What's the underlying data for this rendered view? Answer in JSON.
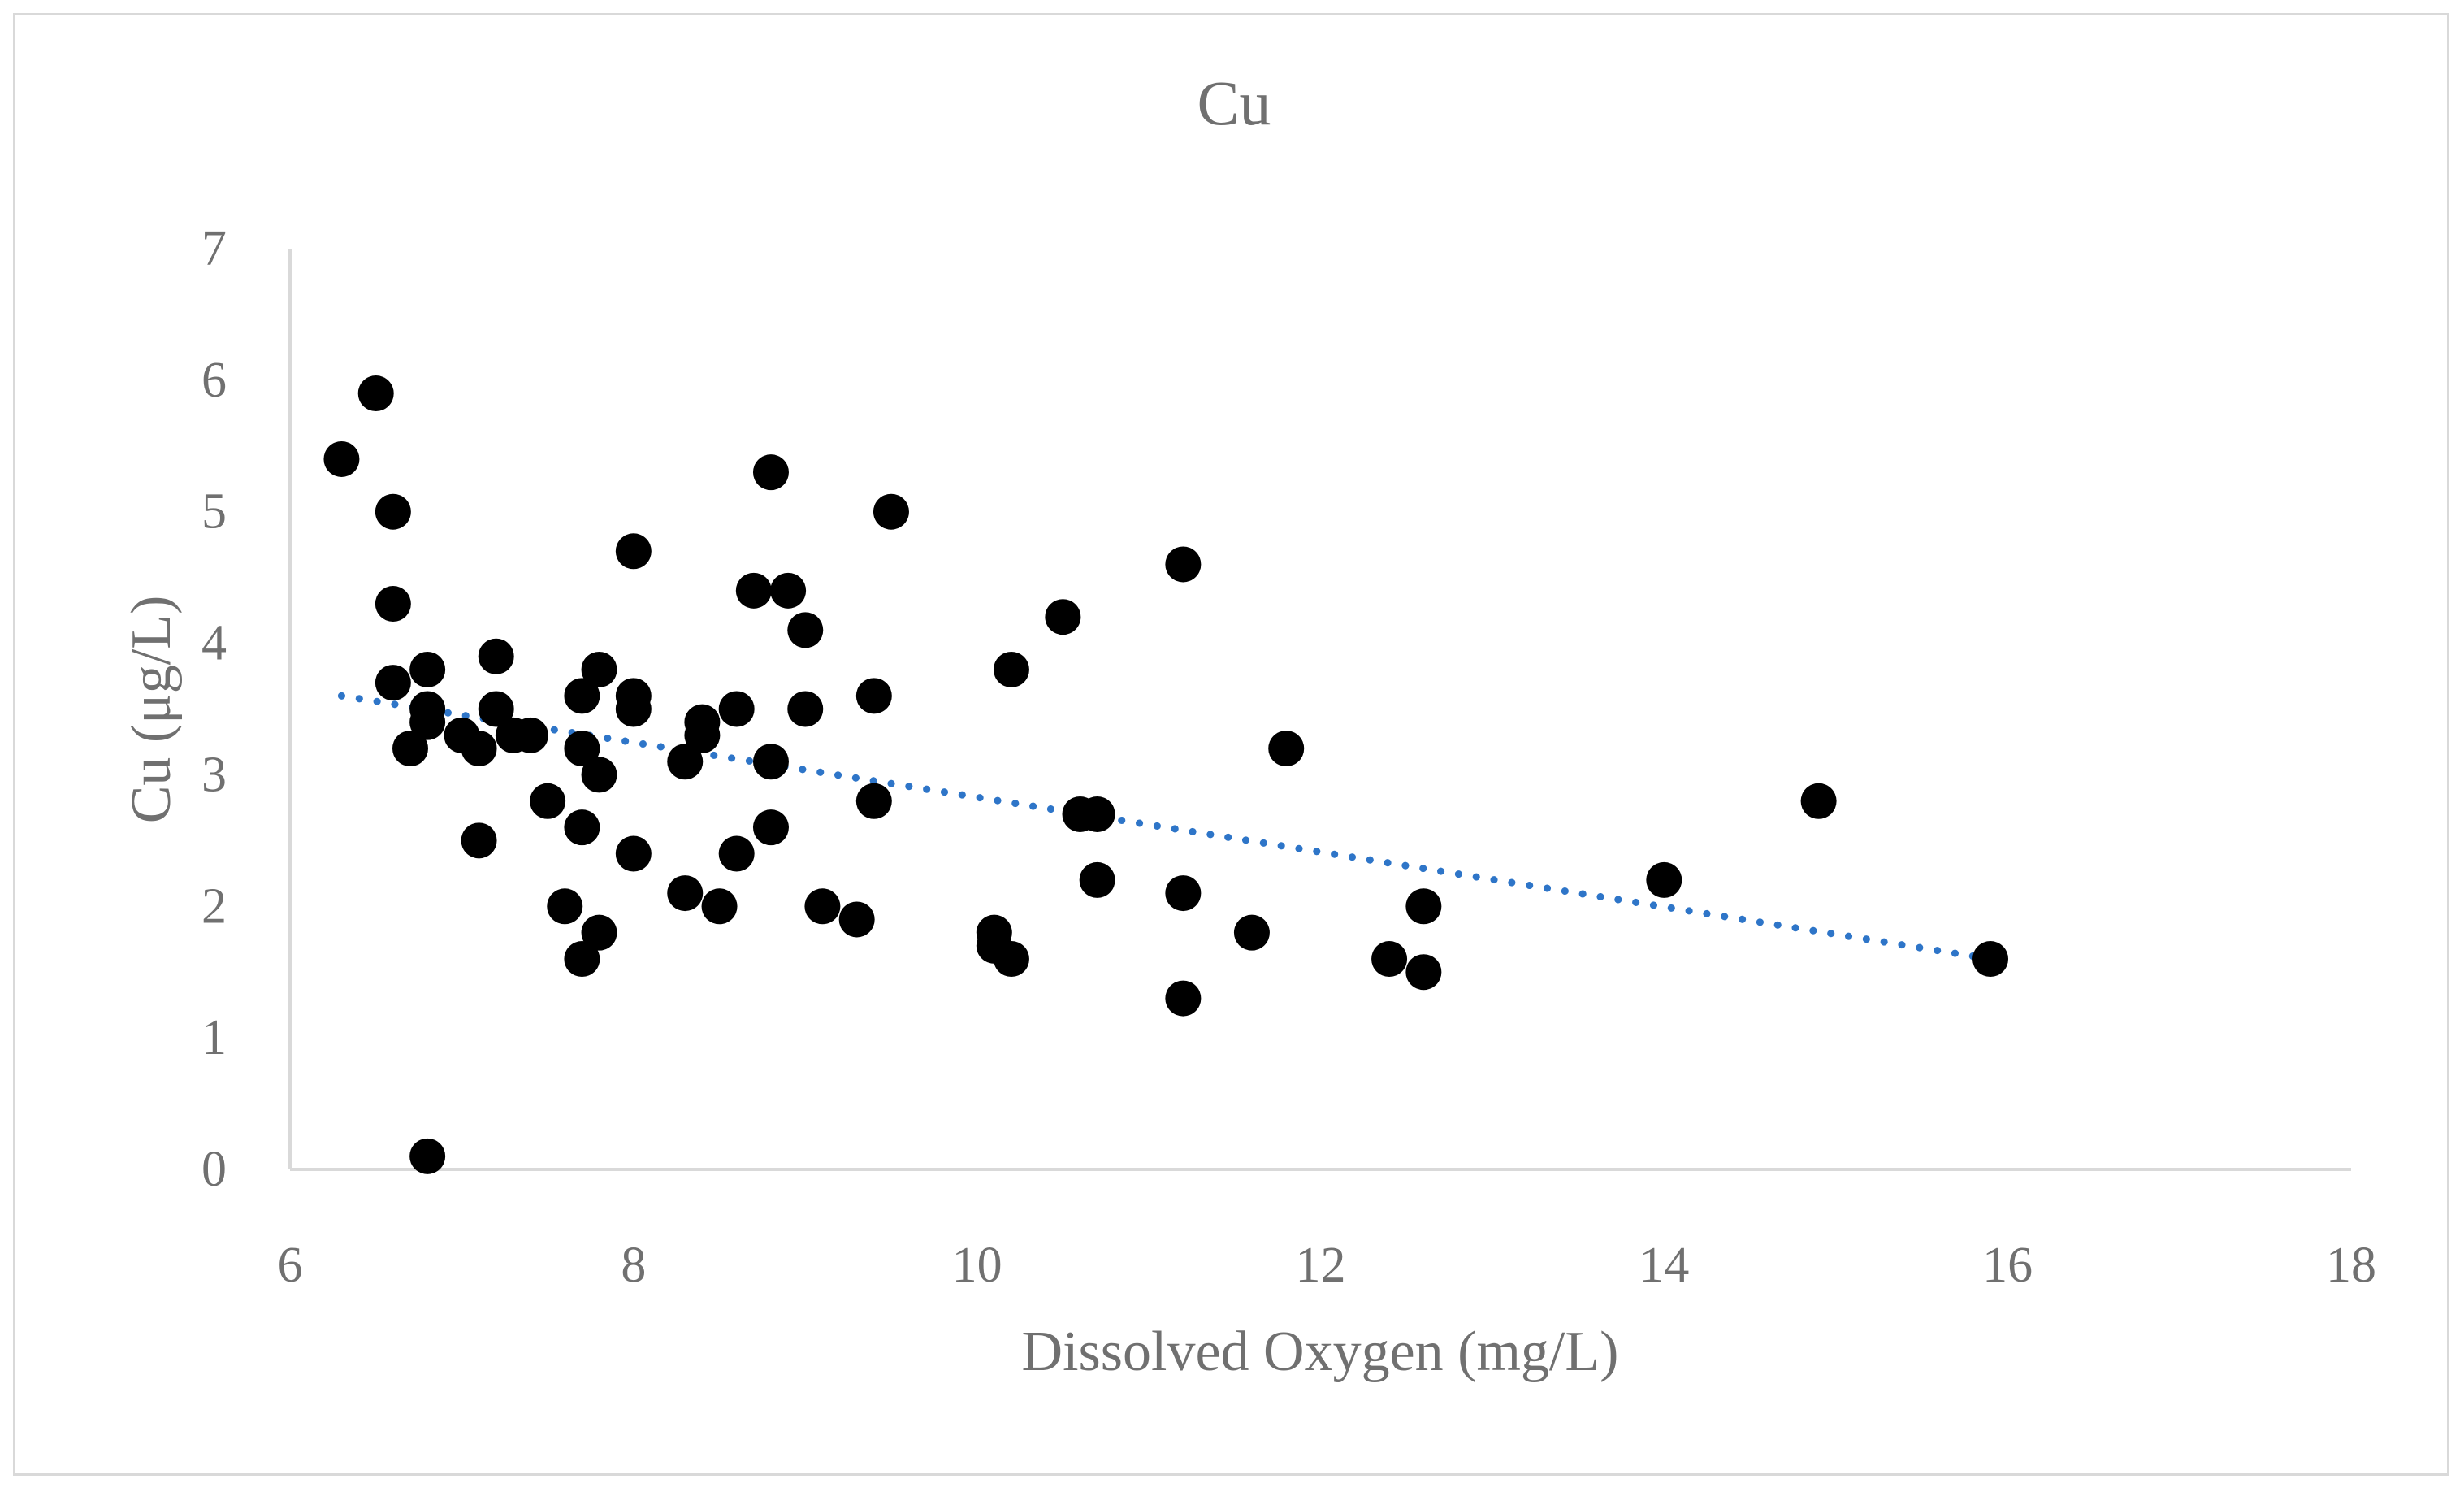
{
  "chart_data": {
    "type": "scatter",
    "title": "Cu",
    "xlabel": "Dissolved Oxygen (mg/L)",
    "ylabel": "Cu (μg/L)",
    "xlim": [
      6,
      18
    ],
    "ylim": [
      0,
      7
    ],
    "xticks": [
      6,
      8,
      10,
      12,
      14,
      16,
      18
    ],
    "yticks": [
      0,
      1,
      2,
      3,
      4,
      5,
      6,
      7
    ],
    "grid": false,
    "legend": "none",
    "marker_color": "#000000",
    "trendline_color": "#2e75c8",
    "axis_color": "#d9d9d9",
    "text_color": "#707070",
    "series": [
      {
        "name": "Cu",
        "points": [
          [
            6.3,
            5.4
          ],
          [
            6.5,
            5.9
          ],
          [
            6.6,
            5.0
          ],
          [
            6.6,
            4.3
          ],
          [
            6.6,
            3.7
          ],
          [
            6.7,
            3.2
          ],
          [
            6.8,
            3.8
          ],
          [
            6.8,
            3.5
          ],
          [
            6.8,
            3.4
          ],
          [
            6.8,
            0.1
          ],
          [
            7.0,
            3.3
          ],
          [
            7.1,
            3.2
          ],
          [
            7.1,
            2.5
          ],
          [
            7.2,
            3.9
          ],
          [
            7.2,
            3.5
          ],
          [
            7.3,
            3.3
          ],
          [
            7.4,
            3.3
          ],
          [
            7.5,
            2.8
          ],
          [
            7.6,
            2.0
          ],
          [
            7.7,
            3.6
          ],
          [
            7.7,
            3.2
          ],
          [
            7.7,
            2.6
          ],
          [
            7.7,
            1.6
          ],
          [
            7.8,
            3.8
          ],
          [
            7.8,
            3.0
          ],
          [
            7.8,
            1.8
          ],
          [
            8.0,
            4.7
          ],
          [
            8.0,
            3.6
          ],
          [
            8.0,
            3.5
          ],
          [
            8.0,
            2.4
          ],
          [
            8.3,
            3.1
          ],
          [
            8.3,
            2.1
          ],
          [
            8.4,
            3.4
          ],
          [
            8.4,
            3.3
          ],
          [
            8.5,
            2.0
          ],
          [
            8.6,
            3.5
          ],
          [
            8.6,
            2.4
          ],
          [
            8.7,
            4.4
          ],
          [
            8.8,
            5.3
          ],
          [
            8.8,
            3.1
          ],
          [
            8.8,
            2.6
          ],
          [
            8.9,
            4.4
          ],
          [
            9.0,
            4.1
          ],
          [
            9.0,
            3.5
          ],
          [
            9.1,
            2.0
          ],
          [
            9.3,
            1.9
          ],
          [
            9.4,
            3.6
          ],
          [
            9.4,
            2.8
          ],
          [
            9.5,
            5.0
          ],
          [
            10.1,
            1.8
          ],
          [
            10.1,
            1.7
          ],
          [
            10.2,
            3.8
          ],
          [
            10.2,
            1.6
          ],
          [
            10.5,
            4.2
          ],
          [
            10.6,
            2.7
          ],
          [
            10.7,
            2.7
          ],
          [
            10.7,
            2.2
          ],
          [
            11.2,
            4.6
          ],
          [
            11.2,
            2.1
          ],
          [
            11.2,
            1.3
          ],
          [
            11.6,
            1.8
          ],
          [
            11.8,
            3.2
          ],
          [
            12.4,
            1.6
          ],
          [
            12.6,
            2.0
          ],
          [
            12.6,
            1.5
          ],
          [
            14.0,
            2.2
          ],
          [
            14.9,
            2.8
          ],
          [
            15.9,
            1.6
          ]
        ]
      }
    ],
    "trendline": {
      "type": "linear",
      "style": "dotted",
      "start": [
        6.3,
        3.6
      ],
      "end": [
        15.9,
        1.6
      ]
    }
  }
}
